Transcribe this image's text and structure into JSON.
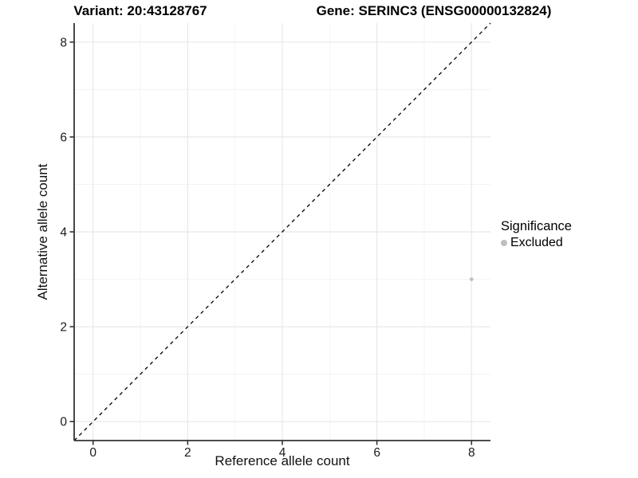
{
  "titles": {
    "variant": "Variant: 20:43128767",
    "gene": "Gene: SERINC3 (ENSG00000132824)"
  },
  "chart_data": {
    "type": "scatter",
    "xlabel": "Reference allele count",
    "ylabel": "Alternative allele count",
    "xlim": [
      -0.4,
      8.4
    ],
    "ylim": [
      -0.4,
      8.4
    ],
    "x_ticks": [
      0,
      2,
      4,
      6,
      8
    ],
    "y_ticks": [
      0,
      2,
      4,
      6,
      8
    ],
    "x_minor_ticks": [
      1,
      3,
      5,
      7
    ],
    "y_minor_ticks": [
      1,
      3,
      5,
      7
    ],
    "grid": {
      "major_color": "#e8e8e8",
      "minor_color": "#f3f3f3"
    },
    "identity_line": {
      "style": "dashed",
      "color": "#000000",
      "from": [
        -0.4,
        -0.4
      ],
      "to": [
        8.4,
        8.4
      ]
    },
    "axis_color": "#333333",
    "tick_label_color": "#1a1a1a",
    "series": [
      {
        "name": "Excluded",
        "color": "#bebebe",
        "point_radius": 2.3,
        "points": [
          [
            8,
            3
          ]
        ]
      }
    ],
    "legend": {
      "title": "Significance",
      "position": "right",
      "items": [
        {
          "label": "Excluded",
          "color": "#bebebe"
        }
      ]
    }
  }
}
